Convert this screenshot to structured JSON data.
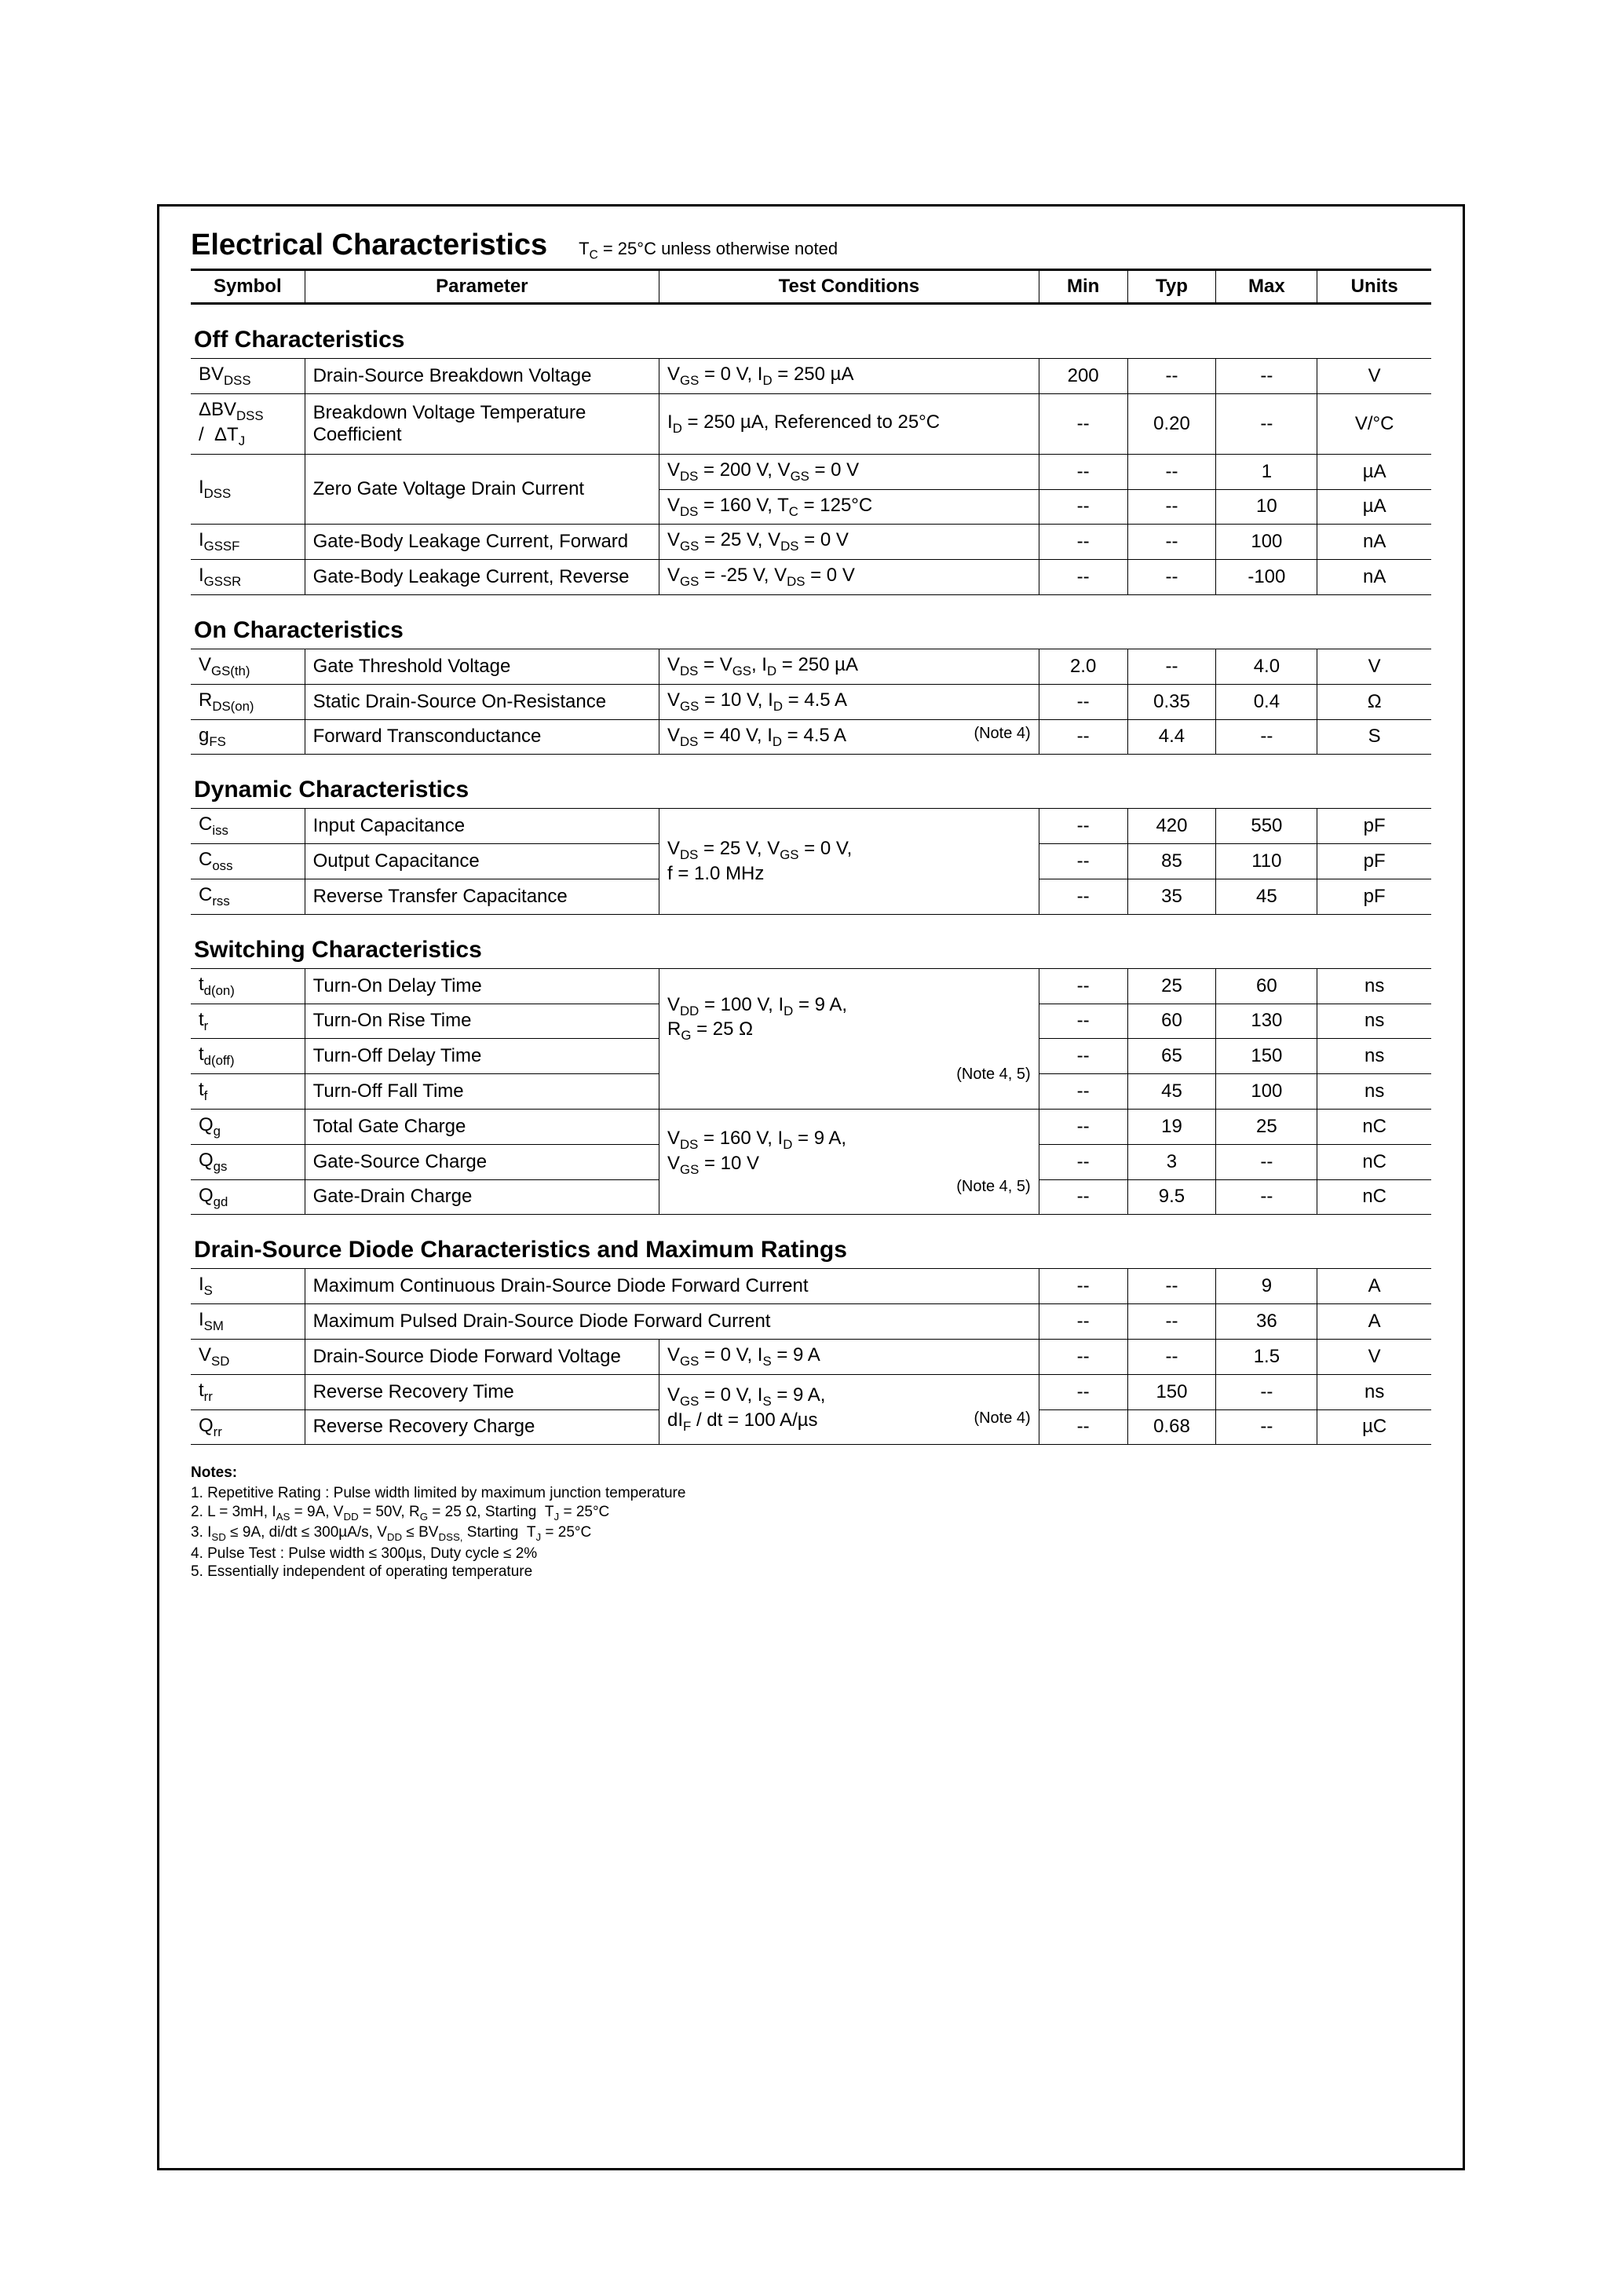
{
  "page_title": "Electrical Characteristics",
  "page_title_note_html": "T<sub>C</sub> = 25°C unless otherwise noted",
  "header": {
    "symbol": "Symbol",
    "parameter": "Parameter",
    "conditions": "Test Conditions",
    "min": "Min",
    "typ": "Typ",
    "max": "Max",
    "units": "Units"
  },
  "dash": "--",
  "sections": [
    {
      "title": "Off Characteristics",
      "rows": [
        {
          "sym_html": "BV<sub>DSS</sub>",
          "param": "Drain-Source Breakdown Voltage",
          "cond_html": "V<sub>GS</sub> = 0 V, I<sub>D</sub> = 250 µA",
          "min": "200",
          "typ": "--",
          "max": "--",
          "units": "V"
        },
        {
          "sym_html": "ΔBV<sub>DSS</sub><br>/&nbsp;&nbsp;ΔT<sub>J</sub>",
          "param": "Breakdown Voltage Temperature Coefficient",
          "cond_html": "I<sub>D</sub> = 250 µA, Referenced to 25°C",
          "min": "--",
          "typ": "0.20",
          "max": "--",
          "units": "V/°C"
        },
        {
          "sym_html": "I<sub>DSS</sub>",
          "sym_rowspan": 2,
          "param": "Zero Gate Voltage Drain Current",
          "param_rowspan": 2,
          "cond_html": "V<sub>DS</sub> = 200 V, V<sub>GS</sub> = 0 V",
          "min": "--",
          "typ": "--",
          "max": "1",
          "units": "µA"
        },
        {
          "cond_html": "V<sub>DS</sub> = 160 V, T<sub>C</sub> = 125°C",
          "min": "--",
          "typ": "--",
          "max": "10",
          "units": "µA"
        },
        {
          "sym_html": "I<sub>GSSF</sub>",
          "param": "Gate-Body Leakage Current, Forward",
          "cond_html": "V<sub>GS</sub> = 25 V, V<sub>DS</sub> = 0 V",
          "min": "--",
          "typ": "--",
          "max": "100",
          "units": "nA"
        },
        {
          "sym_html": "I<sub>GSSR</sub>",
          "param": "Gate-Body Leakage Current, Reverse",
          "cond_html": "V<sub>GS</sub> = -25 V, V<sub>DS</sub> = 0 V",
          "min": "--",
          "typ": "--",
          "max": "-100",
          "units": "nA"
        }
      ]
    },
    {
      "title": "On Characteristics",
      "rows": [
        {
          "sym_html": "V<sub>GS(th)</sub>",
          "param": "Gate Threshold Voltage",
          "cond_html": "V<sub>DS</sub> = V<sub>GS</sub>, I<sub>D</sub> = 250 µA",
          "min": "2.0",
          "typ": "--",
          "max": "4.0",
          "units": "V"
        },
        {
          "sym_html": "R<sub>DS(on)</sub>",
          "param": "Static Drain-Source On-Resistance",
          "cond_html": "V<sub>GS</sub> = 10 V, I<sub>D</sub> = 4.5 A",
          "min": "--",
          "typ": "0.35",
          "max": "0.4",
          "units": "Ω"
        },
        {
          "sym_html": "g<sub>FS</sub>",
          "param": "Forward Transconductance",
          "cond_html": "V<sub>DS</sub> = 40 V, I<sub>D</sub> = 4.5 A <span class='cond-note'>(Note 4)</span>",
          "min": "--",
          "typ": "4.4",
          "max": "--",
          "units": "S"
        }
      ]
    },
    {
      "title": "Dynamic Characteristics",
      "rows": [
        {
          "sym_html": "C<sub>iss</sub>",
          "param": "Input Capacitance",
          "cond_html": "V<sub>DS</sub> = 25 V, V<sub>GS</sub> = 0 V,<br>f = 1.0 MHz",
          "cond_rowspan": 3,
          "min": "--",
          "typ": "420",
          "max": "550",
          "units": "pF"
        },
        {
          "sym_html": "C<sub>oss</sub>",
          "param": "Output Capacitance",
          "min": "--",
          "typ": "85",
          "max": "110",
          "units": "pF"
        },
        {
          "sym_html": "C<sub>rss</sub>",
          "param": "Reverse Transfer Capacitance",
          "min": "--",
          "typ": "35",
          "max": "45",
          "units": "pF"
        }
      ]
    },
    {
      "title": "Switching Characteristics",
      "rows": [
        {
          "sym_html": "t<sub>d(on)</sub>",
          "param": "Turn-On Delay Time",
          "cond_html": "V<sub>DD</sub> = 100 V, I<sub>D</sub> = 9 A,<br>R<sub>G</sub> = 25 Ω<br><br><span class='cond-note'>(Note 4, 5)</span>",
          "cond_rowspan": 4,
          "min": "--",
          "typ": "25",
          "max": "60",
          "units": "ns"
        },
        {
          "sym_html": "t<sub>r</sub>",
          "param": "Turn-On Rise Time",
          "min": "--",
          "typ": "60",
          "max": "130",
          "units": "ns"
        },
        {
          "sym_html": "t<sub>d(off)</sub>",
          "param": "Turn-Off Delay Time",
          "min": "--",
          "typ": "65",
          "max": "150",
          "units": "ns"
        },
        {
          "sym_html": "t<sub>f</sub>",
          "param": "Turn-Off Fall Time",
          "min": "--",
          "typ": "45",
          "max": "100",
          "units": "ns"
        },
        {
          "sym_html": "Q<sub>g</sub>",
          "param": "Total Gate Charge",
          "cond_html": "V<sub>DS</sub> = 160 V, I<sub>D</sub> = 9 A,<br>V<sub>GS</sub> = 10 V<br><span class='cond-note'>(Note 4, 5)</span>",
          "cond_rowspan": 3,
          "min": "--",
          "typ": "19",
          "max": "25",
          "units": "nC"
        },
        {
          "sym_html": "Q<sub>gs</sub>",
          "param": "Gate-Source Charge",
          "min": "--",
          "typ": "3",
          "max": "--",
          "units": "nC"
        },
        {
          "sym_html": "Q<sub>gd</sub>",
          "param": "Gate-Drain Charge",
          "min": "--",
          "typ": "9.5",
          "max": "--",
          "units": "nC"
        }
      ]
    },
    {
      "title": "Drain-Source Diode Characteristics and Maximum Ratings",
      "rows": [
        {
          "sym_html": "I<sub>S</sub>",
          "param": "Maximum Continuous Drain-Source Diode Forward Current",
          "param_colspan": 2,
          "min": "--",
          "typ": "--",
          "max": "9",
          "units": "A"
        },
        {
          "sym_html": "I<sub>SM</sub>",
          "param": "Maximum Pulsed Drain-Source Diode Forward Current",
          "param_colspan": 2,
          "min": "--",
          "typ": "--",
          "max": "36",
          "units": "A"
        },
        {
          "sym_html": "V<sub>SD</sub>",
          "param": "Drain-Source Diode Forward Voltage",
          "cond_html": "V<sub>GS</sub> = 0 V, I<sub>S</sub> = 9 A",
          "min": "--",
          "typ": "--",
          "max": "1.5",
          "units": "V"
        },
        {
          "sym_html": "t<sub>rr</sub>",
          "param": "Reverse Recovery Time",
          "cond_html": "V<sub>GS</sub> = 0 V, I<sub>S</sub> = 9 A,<br>dI<sub>F</sub> / dt = 100 A/µs <span class='cond-note'>(Note 4)</span>",
          "cond_rowspan": 2,
          "min": "--",
          "typ": "150",
          "max": "--",
          "units": "ns"
        },
        {
          "sym_html": "Q<sub>rr</sub>",
          "param": "Reverse Recovery Charge",
          "min": "--",
          "typ": "0.68",
          "max": "--",
          "units": "µC"
        }
      ]
    }
  ],
  "notes_title": "Notes:",
  "notes_html": [
    "1. Repetitive Rating : Pulse width limited by maximum junction temperature",
    "2. L = 3mH, I<sub>AS</sub> = 9A, V<sub>DD</sub> = 50V, R<sub>G</sub> = 25 Ω, Starting&nbsp;&nbsp;T<sub>J</sub> = 25°C",
    "3. I<sub>SD</sub> ≤ 9A, di/dt ≤ 300µA/s, V<sub>DD</sub> ≤ BV<sub>DSS,</sub> Starting&nbsp;&nbsp;T<sub>J</sub> = 25°C",
    "4. Pulse Test : Pulse width ≤ 300µs, Duty cycle ≤ 2%",
    "5. Essentially independent of operating temperature"
  ]
}
